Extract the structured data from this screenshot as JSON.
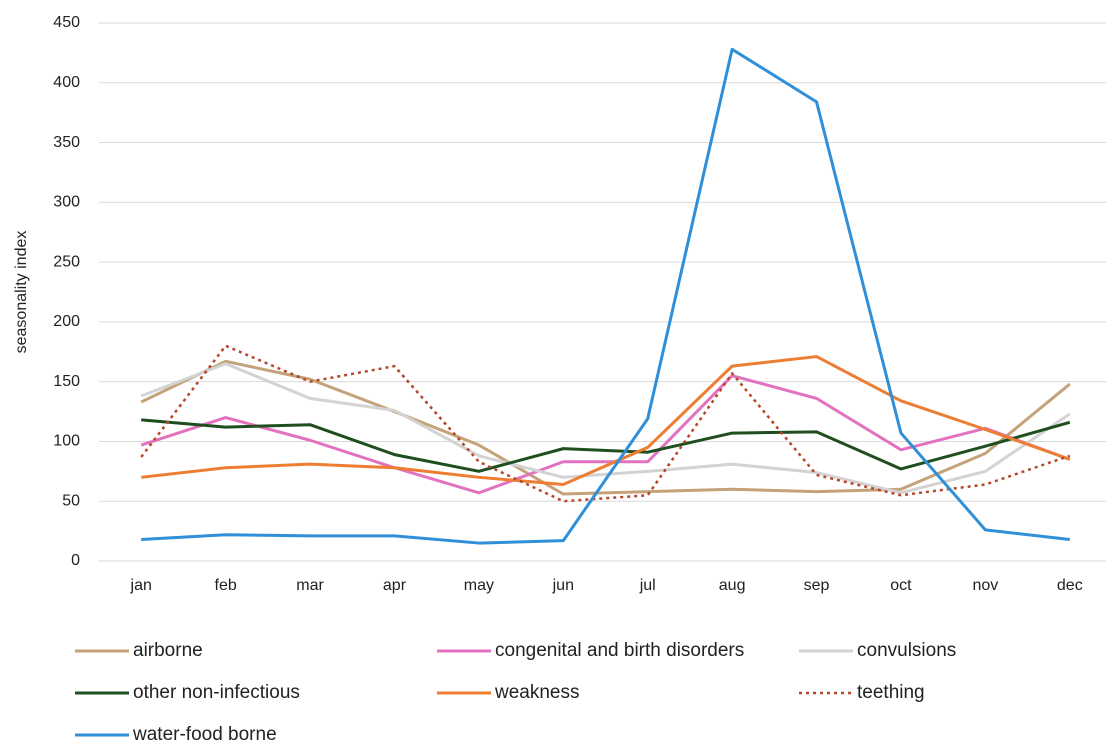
{
  "chart_data": {
    "type": "line",
    "y_label": "seasonality index",
    "categories": [
      "jan",
      "feb",
      "mar",
      "apr",
      "may",
      "jun",
      "jul",
      "aug",
      "sep",
      "oct",
      "nov",
      "dec"
    ],
    "ylim": [
      0,
      450
    ],
    "yticks": [
      0,
      50,
      100,
      150,
      200,
      250,
      300,
      350,
      400,
      450
    ],
    "grid": true,
    "series": [
      {
        "name": "airborne",
        "color": "#c4a27a",
        "values": [
          133,
          167,
          152,
          125,
          97,
          56,
          58,
          60,
          58,
          60,
          90,
          148
        ]
      },
      {
        "name": "congenital and birth disorders",
        "color": "#e272c0",
        "values": [
          97,
          120,
          101,
          78,
          57,
          83,
          83,
          155,
          136,
          93,
          111,
          85
        ]
      },
      {
        "name": "convulsions",
        "color": "#d3d3d3",
        "values": [
          138,
          165,
          136,
          126,
          88,
          70,
          75,
          81,
          74,
          57,
          75,
          123
        ]
      },
      {
        "name": "other non-infectious",
        "color": "#1f4e1f",
        "values": [
          118,
          112,
          114,
          89,
          75,
          94,
          91,
          107,
          108,
          77,
          96,
          116
        ]
      },
      {
        "name": "weakness",
        "color": "#ed7d31",
        "values": [
          70,
          78,
          81,
          78,
          70,
          64,
          95,
          163,
          171,
          134,
          110,
          85
        ]
      },
      {
        "name": "teething",
        "color": "#b5472a",
        "linestyle": "dotted",
        "values": [
          87,
          180,
          150,
          163,
          83,
          50,
          55,
          157,
          72,
          55,
          64,
          88
        ]
      },
      {
        "name": "water-food borne",
        "color": "#2f8fd8",
        "values": [
          18,
          22,
          21,
          21,
          15,
          17,
          119,
          428,
          384,
          107,
          26,
          18
        ]
      }
    ]
  }
}
